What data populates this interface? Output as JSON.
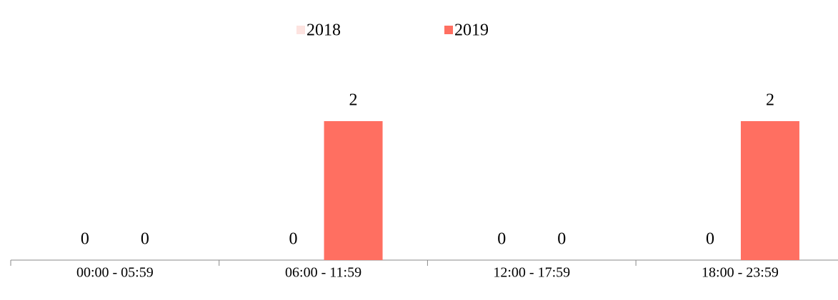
{
  "chart_data": {
    "type": "bar",
    "categories": [
      "00:00 - 05:59",
      "06:00 - 11:59",
      "12:00 - 17:59",
      "18:00 - 23:59"
    ],
    "series": [
      {
        "name": "2018",
        "color": "#fde3e0",
        "values": [
          0,
          0,
          0,
          0
        ]
      },
      {
        "name": "2019",
        "color": "#ff6f61",
        "values": [
          0,
          2,
          0,
          2
        ]
      }
    ],
    "ylim": [
      0,
      2.5
    ],
    "legend": "top"
  }
}
